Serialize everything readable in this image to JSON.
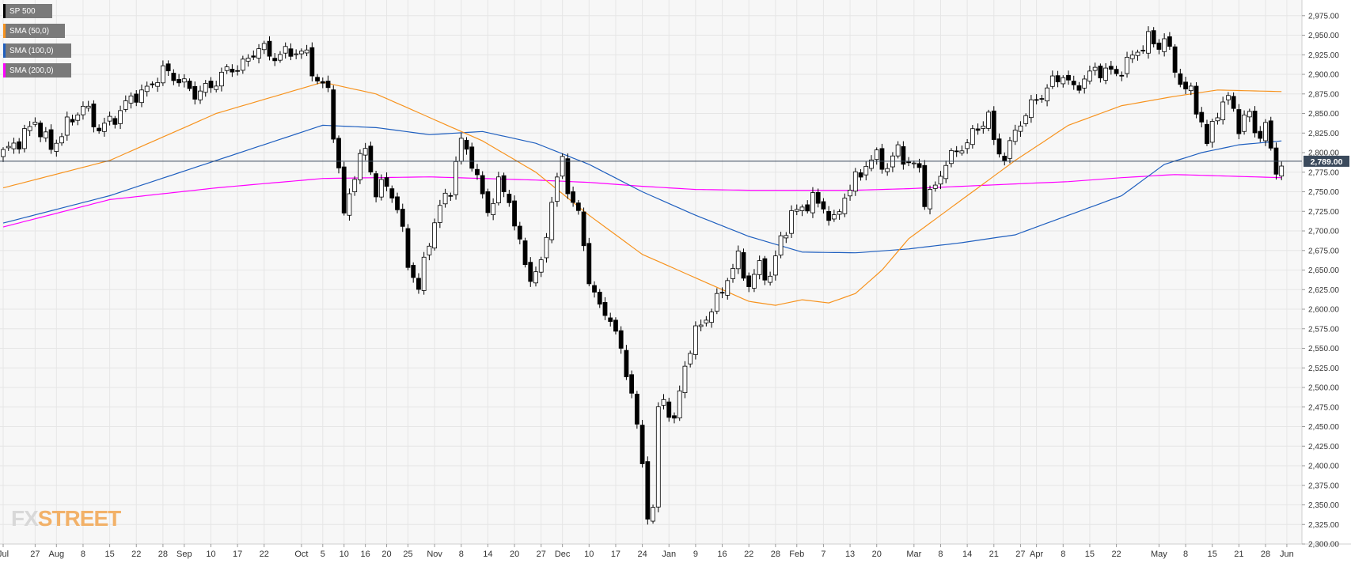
{
  "colors": {
    "candle_up": "#ffffff",
    "candle_down": "#000000",
    "sma50": "#f7931e",
    "sma100": "#1f5fbf",
    "sma200": "#ff00ff",
    "last_price_box": "#3b4a5c",
    "grid": "#e6e6e6",
    "background": "#f7f7f7"
  },
  "legend": [
    {
      "label": "SP 500",
      "color": "#000000"
    },
    {
      "label": "SMA (50,0)",
      "color": "#f7931e"
    },
    {
      "label": "SMA (100,0)",
      "color": "#1f5fbf"
    },
    {
      "label": "SMA (200,0)",
      "color": "#ff00ff"
    }
  ],
  "logo": {
    "part1": "FX",
    "part2": "STREET"
  },
  "chart_data": {
    "type": "candlestick",
    "instrument": "SP 500",
    "ylim": [
      2300,
      2995
    ],
    "y_ticks": [
      2300,
      2325,
      2350,
      2375,
      2400,
      2425,
      2450,
      2475,
      2500,
      2525,
      2550,
      2575,
      2600,
      2625,
      2650,
      2675,
      2700,
      2725,
      2750,
      2775,
      2800,
      2825,
      2850,
      2875,
      2900,
      2925,
      2950,
      2975
    ],
    "y_tick_labels": [
      "2,300.00",
      "2,325.00",
      "2,350.00",
      "2,375.00",
      "2,400.00",
      "2,425.00",
      "2,450.00",
      "2,475.00",
      "2,500.00",
      "2,525.00",
      "2,550.00",
      "2,575.00",
      "2,600.00",
      "2,625.00",
      "2,650.00",
      "2,675.00",
      "2,700.00",
      "2,725.00",
      "2,750.00",
      "2,775.00",
      "2,800.00",
      "2,825.00",
      "2,850.00",
      "2,875.00",
      "2,900.00",
      "2,925.00",
      "2,950.00",
      "2,975.00"
    ],
    "x_ticks": [
      {
        "label": "Jul",
        "index": 0
      },
      {
        "label": "27",
        "index": 6
      },
      {
        "label": "Aug",
        "index": 10
      },
      {
        "label": "8",
        "index": 15
      },
      {
        "label": "15",
        "index": 20
      },
      {
        "label": "22",
        "index": 25
      },
      {
        "label": "28",
        "index": 30
      },
      {
        "label": "Sep",
        "index": 34
      },
      {
        "label": "10",
        "index": 39
      },
      {
        "label": "17",
        "index": 44
      },
      {
        "label": "22",
        "index": 49
      },
      {
        "label": "Oct",
        "index": 56
      },
      {
        "label": "5",
        "index": 60
      },
      {
        "label": "10",
        "index": 64
      },
      {
        "label": "16",
        "index": 68
      },
      {
        "label": "20",
        "index": 72
      },
      {
        "label": "25",
        "index": 76
      },
      {
        "label": "Nov",
        "index": 81
      },
      {
        "label": "8",
        "index": 86
      },
      {
        "label": "14",
        "index": 91
      },
      {
        "label": "20",
        "index": 96
      },
      {
        "label": "27",
        "index": 101
      },
      {
        "label": "Dec",
        "index": 105
      },
      {
        "label": "10",
        "index": 110
      },
      {
        "label": "17",
        "index": 115
      },
      {
        "label": "24",
        "index": 120
      },
      {
        "label": "Jan",
        "index": 125
      },
      {
        "label": "9",
        "index": 130
      },
      {
        "label": "16",
        "index": 135
      },
      {
        "label": "22",
        "index": 140
      },
      {
        "label": "28",
        "index": 145
      },
      {
        "label": "Feb",
        "index": 149
      },
      {
        "label": "7",
        "index": 154
      },
      {
        "label": "13",
        "index": 159
      },
      {
        "label": "20",
        "index": 164
      },
      {
        "label": "Mar",
        "index": 171
      },
      {
        "label": "8",
        "index": 176
      },
      {
        "label": "14",
        "index": 181
      },
      {
        "label": "21",
        "index": 186
      },
      {
        "label": "27",
        "index": 191
      },
      {
        "label": "Apr",
        "index": 194
      },
      {
        "label": "8",
        "index": 199
      },
      {
        "label": "15",
        "index": 204
      },
      {
        "label": "22",
        "index": 209
      },
      {
        "label": "May",
        "index": 217
      },
      {
        "label": "8",
        "index": 222
      },
      {
        "label": "15",
        "index": 227
      },
      {
        "label": "21",
        "index": 232
      },
      {
        "label": "28",
        "index": 237
      },
      {
        "label": "Jun",
        "index": 241
      }
    ],
    "x_count": 245,
    "close_anchors": [
      [
        0,
        2800
      ],
      [
        3,
        2815
      ],
      [
        6,
        2840
      ],
      [
        9,
        2805
      ],
      [
        12,
        2835
      ],
      [
        15,
        2860
      ],
      [
        18,
        2830
      ],
      [
        21,
        2845
      ],
      [
        24,
        2870
      ],
      [
        27,
        2880
      ],
      [
        30,
        2905
      ],
      [
        33,
        2893
      ],
      [
        36,
        2875
      ],
      [
        39,
        2885
      ],
      [
        42,
        2905
      ],
      [
        45,
        2912
      ],
      [
        48,
        2935
      ],
      [
        51,
        2922
      ],
      [
        54,
        2930
      ],
      [
        57,
        2925
      ],
      [
        59,
        2890
      ],
      [
        61,
        2880
      ],
      [
        63,
        2775
      ],
      [
        64,
        2720
      ],
      [
        66,
        2775
      ],
      [
        68,
        2805
      ],
      [
        70,
        2750
      ],
      [
        72,
        2760
      ],
      [
        74,
        2730
      ],
      [
        76,
        2660
      ],
      [
        78,
        2625
      ],
      [
        80,
        2690
      ],
      [
        82,
        2730
      ],
      [
        84,
        2755
      ],
      [
        86,
        2815
      ],
      [
        88,
        2790
      ],
      [
        89,
        2765
      ],
      [
        91,
        2725
      ],
      [
        93,
        2760
      ],
      [
        95,
        2740
      ],
      [
        97,
        2680
      ],
      [
        99,
        2640
      ],
      [
        101,
        2655
      ],
      [
        103,
        2740
      ],
      [
        105,
        2790
      ],
      [
        106,
        2755
      ],
      [
        108,
        2720
      ],
      [
        110,
        2640
      ],
      [
        112,
        2600
      ],
      [
        114,
        2590
      ],
      [
        116,
        2545
      ],
      [
        118,
        2495
      ],
      [
        120,
        2400
      ],
      [
        121,
        2340
      ],
      [
        122,
        2345
      ],
      [
        123,
        2470
      ],
      [
        124,
        2485
      ],
      [
        126,
        2455
      ],
      [
        128,
        2530
      ],
      [
        130,
        2570
      ],
      [
        132,
        2590
      ],
      [
        134,
        2610
      ],
      [
        136,
        2640
      ],
      [
        138,
        2665
      ],
      [
        140,
        2630
      ],
      [
        142,
        2655
      ],
      [
        144,
        2640
      ],
      [
        146,
        2690
      ],
      [
        148,
        2720
      ],
      [
        150,
        2730
      ],
      [
        152,
        2740
      ],
      [
        154,
        2730
      ],
      [
        156,
        2710
      ],
      [
        158,
        2745
      ],
      [
        160,
        2765
      ],
      [
        162,
        2785
      ],
      [
        164,
        2795
      ],
      [
        166,
        2780
      ],
      [
        168,
        2805
      ],
      [
        170,
        2785
      ],
      [
        172,
        2780
      ],
      [
        173,
        2740
      ],
      [
        175,
        2755
      ],
      [
        177,
        2790
      ],
      [
        179,
        2800
      ],
      [
        181,
        2815
      ],
      [
        183,
        2830
      ],
      [
        185,
        2850
      ],
      [
        186,
        2810
      ],
      [
        188,
        2795
      ],
      [
        189,
        2810
      ],
      [
        191,
        2840
      ],
      [
        193,
        2860
      ],
      [
        195,
        2875
      ],
      [
        197,
        2890
      ],
      [
        199,
        2900
      ],
      [
        201,
        2880
      ],
      [
        203,
        2895
      ],
      [
        205,
        2905
      ],
      [
        207,
        2905
      ],
      [
        209,
        2900
      ],
      [
        211,
        2915
      ],
      [
        213,
        2930
      ],
      [
        215,
        2945
      ],
      [
        217,
        2935
      ],
      [
        218,
        2950
      ],
      [
        219,
        2925
      ],
      [
        221,
        2890
      ],
      [
        223,
        2875
      ],
      [
        225,
        2840
      ],
      [
        226,
        2810
      ],
      [
        228,
        2855
      ],
      [
        230,
        2870
      ],
      [
        232,
        2835
      ],
      [
        234,
        2850
      ],
      [
        235,
        2825
      ],
      [
        237,
        2830
      ],
      [
        238,
        2805
      ],
      [
        239,
        2775
      ],
      [
        240,
        2789
      ]
    ],
    "sma50_anchors": [
      [
        0,
        2755
      ],
      [
        20,
        2790
      ],
      [
        40,
        2850
      ],
      [
        60,
        2890
      ],
      [
        70,
        2875
      ],
      [
        80,
        2845
      ],
      [
        90,
        2815
      ],
      [
        100,
        2775
      ],
      [
        110,
        2720
      ],
      [
        120,
        2670
      ],
      [
        130,
        2640
      ],
      [
        140,
        2610
      ],
      [
        145,
        2605
      ],
      [
        150,
        2612
      ],
      [
        155,
        2608
      ],
      [
        160,
        2620
      ],
      [
        165,
        2650
      ],
      [
        170,
        2690
      ],
      [
        180,
        2740
      ],
      [
        190,
        2790
      ],
      [
        200,
        2835
      ],
      [
        210,
        2860
      ],
      [
        220,
        2872
      ],
      [
        228,
        2880
      ],
      [
        240,
        2878
      ]
    ],
    "sma100_anchors": [
      [
        0,
        2710
      ],
      [
        20,
        2745
      ],
      [
        40,
        2790
      ],
      [
        60,
        2835
      ],
      [
        70,
        2832
      ],
      [
        80,
        2823
      ],
      [
        90,
        2827
      ],
      [
        100,
        2812
      ],
      [
        110,
        2785
      ],
      [
        120,
        2750
      ],
      [
        130,
        2720
      ],
      [
        140,
        2693
      ],
      [
        150,
        2673
      ],
      [
        160,
        2672
      ],
      [
        170,
        2677
      ],
      [
        180,
        2685
      ],
      [
        190,
        2695
      ],
      [
        200,
        2720
      ],
      [
        210,
        2745
      ],
      [
        218,
        2785
      ],
      [
        225,
        2800
      ],
      [
        232,
        2810
      ],
      [
        240,
        2815
      ]
    ],
    "sma200_anchors": [
      [
        0,
        2705
      ],
      [
        20,
        2740
      ],
      [
        40,
        2755
      ],
      [
        60,
        2767
      ],
      [
        80,
        2769
      ],
      [
        100,
        2765
      ],
      [
        110,
        2762
      ],
      [
        120,
        2757
      ],
      [
        130,
        2753
      ],
      [
        140,
        2752
      ],
      [
        150,
        2752
      ],
      [
        160,
        2752
      ],
      [
        170,
        2754
      ],
      [
        180,
        2757
      ],
      [
        190,
        2760
      ],
      [
        200,
        2763
      ],
      [
        210,
        2768
      ],
      [
        220,
        2772
      ],
      [
        230,
        2770
      ],
      [
        240,
        2768
      ]
    ],
    "last_price": 2789,
    "last_price_label": "2,789.00"
  }
}
